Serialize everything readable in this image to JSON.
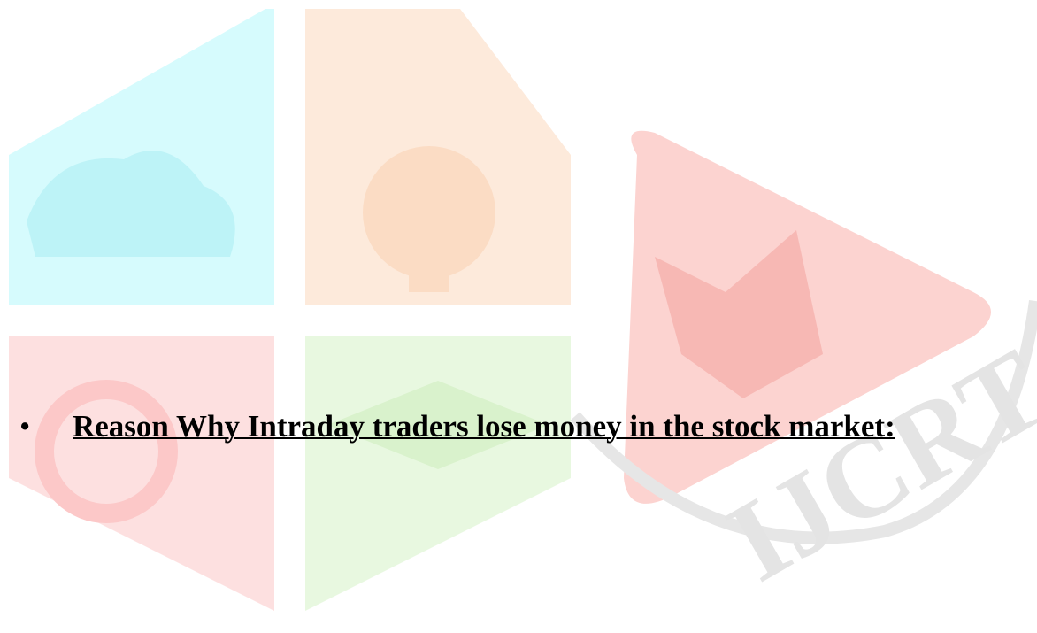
{
  "watermark": {
    "text": "IJCRT"
  },
  "heading": {
    "bullet": "•",
    "text": "Reason Why Intraday traders lose money in the stock market:"
  }
}
